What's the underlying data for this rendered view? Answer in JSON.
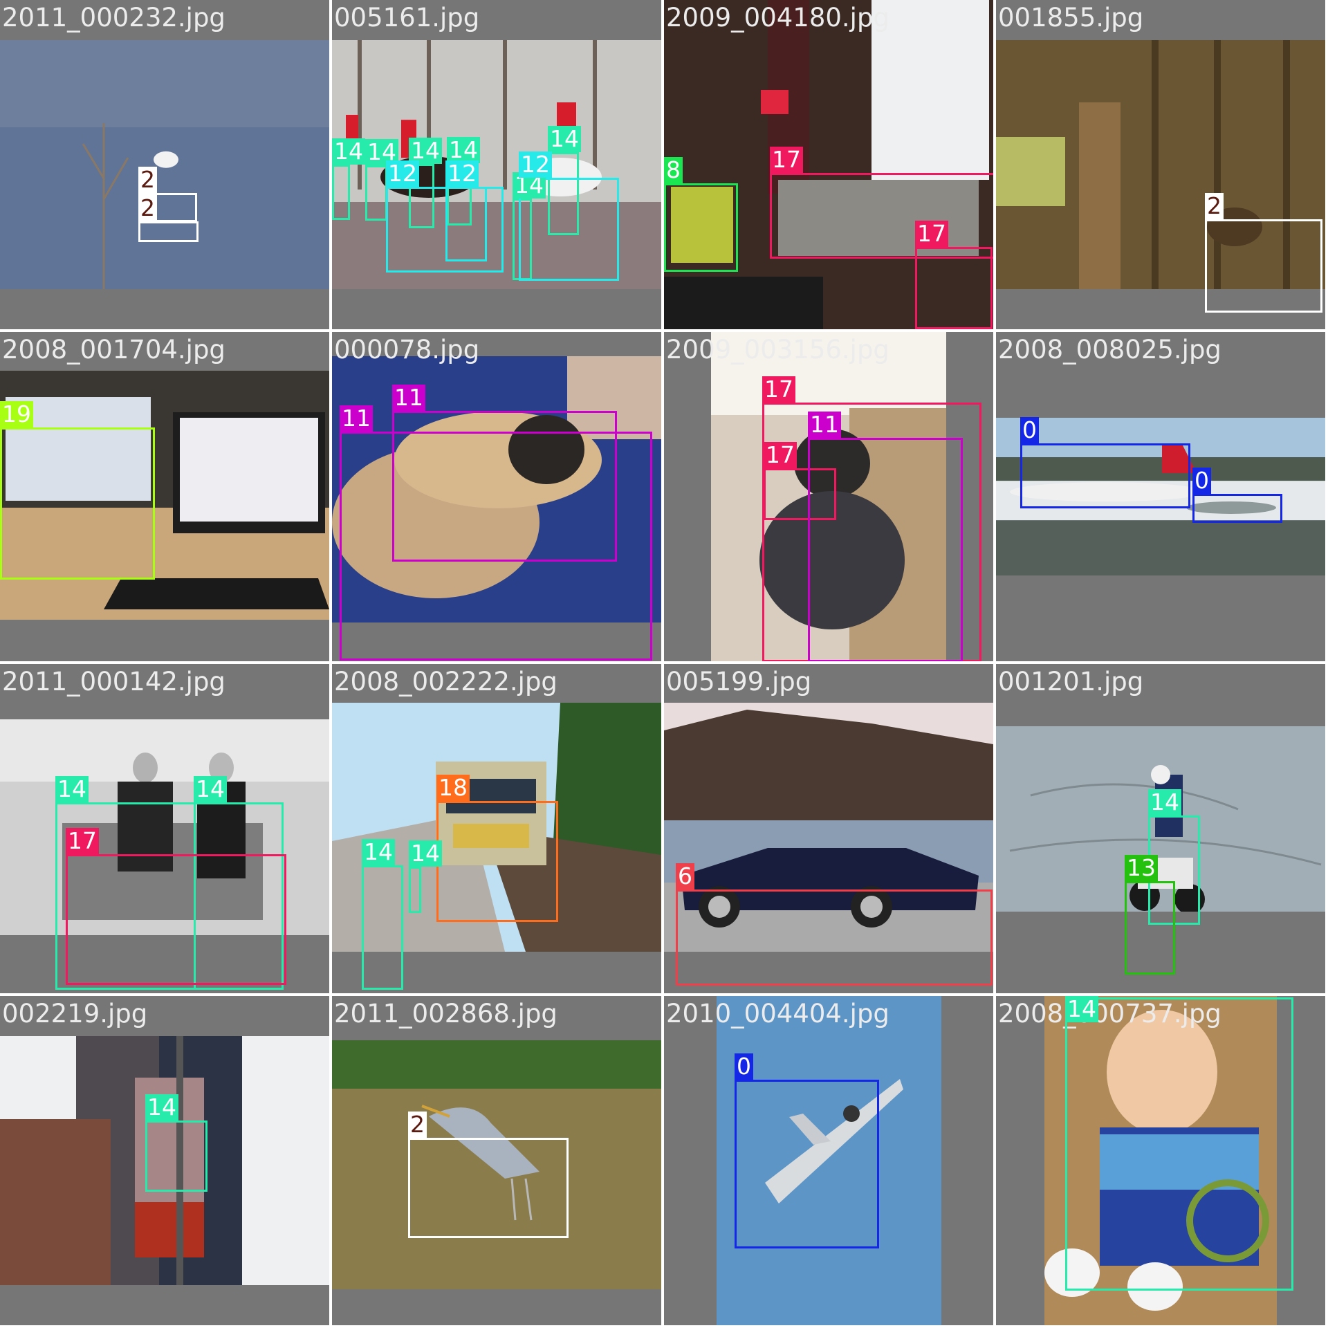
{
  "class_colors": {
    "0": "#1426e6",
    "2": "#ffffff",
    "6": "#ee3f4a",
    "8": "#19e650",
    "11": "#cc00cc",
    "12": "#26e9e9",
    "13": "#24c20f",
    "14": "#27ebaa",
    "17": "#f0185f",
    "18": "#ff6d1c",
    "19": "#a9ff14"
  },
  "label_text_colors": {
    "2": "#5a1a10"
  },
  "tiles": [
    {
      "filename": "2011_000232.jpg",
      "scene": "water-scene",
      "boxes": [
        {
          "cls": "2",
          "label": "2"
        },
        {
          "cls": "2",
          "label": "2"
        }
      ]
    },
    {
      "filename": "005161.jpg",
      "scene": "horses-scene",
      "boxes": [
        {
          "cls": "14",
          "label": "14"
        },
        {
          "cls": "14",
          "label": "14"
        },
        {
          "cls": "14",
          "label": "14"
        },
        {
          "cls": "14",
          "label": "14"
        },
        {
          "cls": "14",
          "label": "14"
        },
        {
          "cls": "14",
          "label": "14"
        },
        {
          "cls": "12",
          "label": "12"
        },
        {
          "cls": "12",
          "label": "12"
        },
        {
          "cls": "12",
          "label": "12"
        }
      ]
    },
    {
      "filename": "2009_004180.jpg",
      "scene": "livingroom-scene",
      "boxes": [
        {
          "cls": "17",
          "label": "17"
        },
        {
          "cls": "8",
          "label": "8"
        },
        {
          "cls": "17",
          "label": "17"
        }
      ]
    },
    {
      "filename": "001855.jpg",
      "scene": "bird-fence-scene",
      "boxes": [
        {
          "cls": "2",
          "label": "2"
        }
      ]
    },
    {
      "filename": "2008_001704.jpg",
      "scene": "laptop-scene",
      "boxes": [
        {
          "cls": "19",
          "label": "19"
        }
      ]
    },
    {
      "filename": "000078.jpg",
      "scene": "dogs-scene",
      "boxes": [
        {
          "cls": "11",
          "label": "11"
        },
        {
          "cls": "11",
          "label": "11"
        }
      ]
    },
    {
      "filename": "2009_003156.jpg",
      "scene": "shaggy-dog-scene",
      "boxes": [
        {
          "cls": "17",
          "label": "17"
        },
        {
          "cls": "17",
          "label": "17"
        },
        {
          "cls": "11",
          "label": "11"
        }
      ]
    },
    {
      "filename": "2008_008025.jpg",
      "scene": "airport-scene",
      "boxes": [
        {
          "cls": "0",
          "label": "0"
        },
        {
          "cls": "0",
          "label": "0"
        }
      ]
    },
    {
      "filename": "2011_000142.jpg",
      "scene": "sofa-men-scene",
      "boxes": [
        {
          "cls": "14",
          "label": "14"
        },
        {
          "cls": "14",
          "label": "14"
        },
        {
          "cls": "17",
          "label": "17"
        }
      ]
    },
    {
      "filename": "2008_002222.jpg",
      "scene": "train-scene",
      "boxes": [
        {
          "cls": "18",
          "label": "18"
        },
        {
          "cls": "14",
          "label": "14"
        },
        {
          "cls": "14",
          "label": "14"
        }
      ]
    },
    {
      "filename": "005199.jpg",
      "scene": "car-scene",
      "boxes": [
        {
          "cls": "6",
          "label": "6"
        }
      ]
    },
    {
      "filename": "001201.jpg",
      "scene": "motorbike-scene",
      "boxes": [
        {
          "cls": "14",
          "label": "14"
        },
        {
          "cls": "13",
          "label": "13"
        }
      ]
    },
    {
      "filename": "002219.jpg",
      "scene": "banner-scene",
      "boxes": [
        {
          "cls": "14",
          "label": "14"
        }
      ]
    },
    {
      "filename": "2011_002868.jpg",
      "scene": "heron-scene",
      "boxes": [
        {
          "cls": "2",
          "label": "2"
        }
      ]
    },
    {
      "filename": "2010_004404.jpg",
      "scene": "sky-plane-scene",
      "boxes": [
        {
          "cls": "0",
          "label": "0"
        }
      ]
    },
    {
      "filename": "2008_000737.jpg",
      "scene": "baby-scene",
      "boxes": [
        {
          "cls": "14",
          "label": "14"
        }
      ]
    }
  ]
}
